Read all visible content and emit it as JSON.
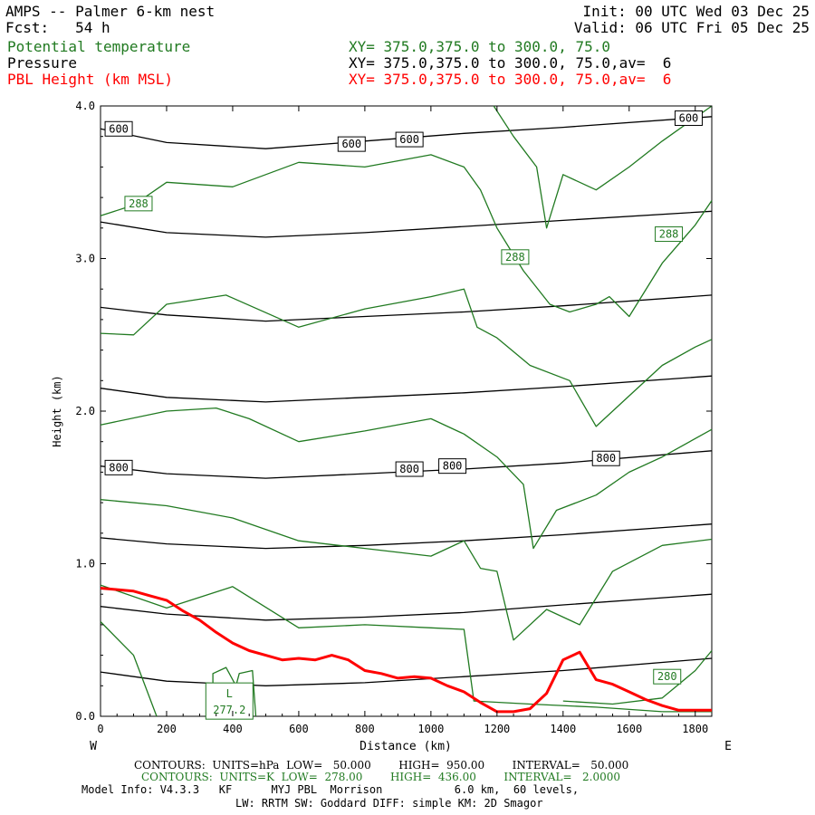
{
  "header": {
    "model_title": "AMPS -- Palmer 6-km nest",
    "forecast": "Fcst:   54 h",
    "init": "Init: 00 UTC Wed 03 Dec 25",
    "valid": "Valid: 06 UTC Fri 05 Dec 25",
    "legend": [
      {
        "name": "Potential temperature",
        "xy": "XY= 375.0,375.0 to 300.0, 75.0",
        "color": "#217a21"
      },
      {
        "name": "Pressure",
        "xy": "XY= 375.0,375.0 to 300.0, 75.0,av=  6",
        "color": "#000000"
      },
      {
        "name": "PBL Height (km MSL)",
        "xy": "XY= 375.0,375.0 to 300.0, 75.0,av=  6",
        "color": "#ff0000"
      }
    ]
  },
  "chart_data": {
    "type": "line",
    "title": "",
    "xlabel": "Distance (km)",
    "ylabel": "Height (km)",
    "xlim": [
      0,
      1850
    ],
    "ylim": [
      0.0,
      4.0
    ],
    "x_ticks": [
      0,
      200,
      400,
      600,
      800,
      1000,
      1200,
      1400,
      1600,
      1800
    ],
    "y_ticks": [
      0.0,
      1.0,
      2.0,
      3.0,
      4.0
    ],
    "y_tick_labels": [
      "0.0",
      "1.0",
      "2.0",
      "3.0",
      "4.0"
    ],
    "x_end_labels": {
      "left": "W",
      "right": "E"
    },
    "grid": false,
    "series": [
      {
        "name": "Pressure",
        "color": "#000000",
        "lines": [
          [
            [
              0,
              3.85
            ],
            [
              200,
              3.76
            ],
            [
              500,
              3.72
            ],
            [
              800,
              3.77
            ],
            [
              1100,
              3.82
            ],
            [
              1400,
              3.86
            ],
            [
              1850,
              3.93
            ]
          ],
          [
            [
              0,
              3.24
            ],
            [
              200,
              3.17
            ],
            [
              500,
              3.14
            ],
            [
              800,
              3.17
            ],
            [
              1100,
              3.21
            ],
            [
              1400,
              3.25
            ],
            [
              1850,
              3.31
            ]
          ],
          [
            [
              0,
              2.68
            ],
            [
              200,
              2.63
            ],
            [
              500,
              2.59
            ],
            [
              800,
              2.62
            ],
            [
              1100,
              2.65
            ],
            [
              1400,
              2.69
            ],
            [
              1850,
              2.76
            ]
          ],
          [
            [
              0,
              2.15
            ],
            [
              200,
              2.09
            ],
            [
              500,
              2.06
            ],
            [
              800,
              2.09
            ],
            [
              1100,
              2.12
            ],
            [
              1400,
              2.16
            ],
            [
              1850,
              2.23
            ]
          ],
          [
            [
              0,
              1.64
            ],
            [
              200,
              1.59
            ],
            [
              500,
              1.56
            ],
            [
              800,
              1.59
            ],
            [
              1100,
              1.62
            ],
            [
              1400,
              1.66
            ],
            [
              1850,
              1.74
            ]
          ],
          [
            [
              0,
              1.17
            ],
            [
              200,
              1.13
            ],
            [
              500,
              1.1
            ],
            [
              800,
              1.12
            ],
            [
              1100,
              1.15
            ],
            [
              1400,
              1.19
            ],
            [
              1850,
              1.26
            ]
          ],
          [
            [
              0,
              0.72
            ],
            [
              200,
              0.67
            ],
            [
              500,
              0.63
            ],
            [
              800,
              0.65
            ],
            [
              1100,
              0.68
            ],
            [
              1400,
              0.73
            ],
            [
              1850,
              0.8
            ]
          ],
          [
            [
              0,
              0.29
            ],
            [
              200,
              0.23
            ],
            [
              500,
              0.2
            ],
            [
              800,
              0.22
            ],
            [
              1100,
              0.26
            ],
            [
              1400,
              0.3
            ],
            [
              1850,
              0.38
            ]
          ]
        ],
        "labels": [
          {
            "text": "600",
            "x": 55,
            "y": 3.85
          },
          {
            "text": "600",
            "x": 760,
            "y": 3.75
          },
          {
            "text": "600",
            "x": 935,
            "y": 3.78
          },
          {
            "text": "600",
            "x": 1780,
            "y": 3.92
          },
          {
            "text": "800",
            "x": 55,
            "y": 1.63
          },
          {
            "text": "800",
            "x": 935,
            "y": 1.62
          },
          {
            "text": "800",
            "x": 1065,
            "y": 1.64
          },
          {
            "text": "800",
            "x": 1530,
            "y": 1.69
          }
        ]
      },
      {
        "name": "Potential temperature",
        "color": "#217a21",
        "lines": [
          [
            [
              0,
              3.28
            ],
            [
              100,
              3.35
            ],
            [
              200,
              3.5
            ],
            [
              400,
              3.47
            ],
            [
              600,
              3.63
            ],
            [
              800,
              3.6
            ],
            [
              1000,
              3.68
            ],
            [
              1100,
              3.6
            ],
            [
              1150,
              3.45
            ],
            [
              1200,
              3.2
            ],
            [
              1280,
              2.92
            ],
            [
              1360,
              2.7
            ],
            [
              1420,
              2.65
            ],
            [
              1500,
              2.7
            ],
            [
              1540,
              2.75
            ],
            [
              1600,
              2.62
            ],
            [
              1700,
              2.97
            ],
            [
              1800,
              3.22
            ],
            [
              1850,
              3.38
            ]
          ],
          [
            [
              0,
              2.51
            ],
            [
              100,
              2.5
            ],
            [
              200,
              2.7
            ],
            [
              380,
              2.76
            ],
            [
              600,
              2.55
            ],
            [
              800,
              2.67
            ],
            [
              1000,
              2.75
            ],
            [
              1100,
              2.8
            ],
            [
              1140,
              2.55
            ],
            [
              1200,
              2.48
            ],
            [
              1300,
              2.3
            ],
            [
              1420,
              2.2
            ],
            [
              1500,
              1.9
            ],
            [
              1600,
              2.1
            ],
            [
              1700,
              2.3
            ],
            [
              1800,
              2.42
            ],
            [
              1850,
              2.47
            ]
          ],
          [
            [
              0,
              1.91
            ],
            [
              200,
              2.0
            ],
            [
              350,
              2.02
            ],
            [
              450,
              1.95
            ],
            [
              600,
              1.8
            ],
            [
              800,
              1.87
            ],
            [
              1000,
              1.95
            ],
            [
              1100,
              1.85
            ],
            [
              1200,
              1.7
            ],
            [
              1280,
              1.52
            ],
            [
              1310,
              1.1
            ],
            [
              1380,
              1.35
            ],
            [
              1500,
              1.45
            ],
            [
              1600,
              1.6
            ],
            [
              1700,
              1.7
            ],
            [
              1850,
              1.88
            ]
          ],
          [
            [
              0,
              1.42
            ],
            [
              200,
              1.38
            ],
            [
              400,
              1.3
            ],
            [
              600,
              1.15
            ],
            [
              800,
              1.1
            ],
            [
              1000,
              1.05
            ],
            [
              1100,
              1.15
            ],
            [
              1150,
              0.97
            ],
            [
              1200,
              0.95
            ],
            [
              1250,
              0.5
            ],
            [
              1350,
              0.7
            ],
            [
              1450,
              0.6
            ],
            [
              1550,
              0.95
            ],
            [
              1700,
              1.12
            ],
            [
              1850,
              1.16
            ]
          ],
          [
            [
              0,
              0.86
            ],
            [
              200,
              0.71
            ],
            [
              400,
              0.85
            ],
            [
              600,
              0.58
            ],
            [
              800,
              0.6
            ],
            [
              1000,
              0.58
            ],
            [
              1100,
              0.57
            ],
            [
              1130,
              0.1
            ],
            [
              1300,
              0.08
            ],
            [
              1500,
              0.06
            ],
            [
              1700,
              0.03
            ],
            [
              1850,
              0.03
            ]
          ],
          [
            [
              0,
              0.62
            ],
            [
              100,
              0.4
            ],
            [
              170,
              0.0
            ]
          ],
          [
            [
              340,
              0.0
            ],
            [
              340,
              0.28
            ],
            [
              380,
              0.32
            ],
            [
              410,
              0.2
            ],
            [
              420,
              0.28
            ],
            [
              460,
              0.3
            ],
            [
              470,
              0.0
            ]
          ],
          [
            [
              1400,
              0.1
            ],
            [
              1550,
              0.08
            ],
            [
              1700,
              0.12
            ],
            [
              1800,
              0.3
            ],
            [
              1850,
              0.43
            ]
          ],
          [
            [
              1190,
              4.0
            ],
            [
              1250,
              3.8
            ],
            [
              1320,
              3.6
            ],
            [
              1350,
              3.2
            ],
            [
              1400,
              3.55
            ],
            [
              1500,
              3.45
            ],
            [
              1600,
              3.6
            ],
            [
              1700,
              3.77
            ],
            [
              1850,
              4.0
            ]
          ]
        ],
        "labels": [
          {
            "text": "288",
            "x": 115,
            "y": 3.36
          },
          {
            "text": "288",
            "x": 1255,
            "y": 3.01
          },
          {
            "text": "288",
            "x": 1720,
            "y": 3.16
          },
          {
            "text": "280",
            "x": 1715,
            "y": 0.26
          }
        ],
        "low_marker": {
          "symbol": "L",
          "value": "277.2",
          "x": 390,
          "y": 0.1
        }
      },
      {
        "name": "PBL Height",
        "color": "#ff0000",
        "points": [
          [
            0,
            0.84
          ],
          [
            50,
            0.83
          ],
          [
            100,
            0.82
          ],
          [
            150,
            0.79
          ],
          [
            200,
            0.76
          ],
          [
            250,
            0.69
          ],
          [
            300,
            0.63
          ],
          [
            350,
            0.55
          ],
          [
            400,
            0.48
          ],
          [
            450,
            0.43
          ],
          [
            500,
            0.4
          ],
          [
            550,
            0.37
          ],
          [
            600,
            0.38
          ],
          [
            650,
            0.37
          ],
          [
            700,
            0.4
          ],
          [
            750,
            0.37
          ],
          [
            800,
            0.3
          ],
          [
            850,
            0.28
          ],
          [
            900,
            0.25
          ],
          [
            950,
            0.26
          ],
          [
            1000,
            0.25
          ],
          [
            1050,
            0.2
          ],
          [
            1100,
            0.16
          ],
          [
            1150,
            0.09
          ],
          [
            1200,
            0.03
          ],
          [
            1250,
            0.03
          ],
          [
            1300,
            0.05
          ],
          [
            1350,
            0.15
          ],
          [
            1400,
            0.37
          ],
          [
            1450,
            0.42
          ],
          [
            1500,
            0.24
          ],
          [
            1550,
            0.21
          ],
          [
            1600,
            0.16
          ],
          [
            1650,
            0.11
          ],
          [
            1700,
            0.07
          ],
          [
            1750,
            0.04
          ],
          [
            1850,
            0.04
          ]
        ]
      }
    ]
  },
  "footer": {
    "line1": "CONTOURS:  UNITS=hPa  LOW=   50.000        HIGH=  950.00        INTERVAL=   50.000",
    "line2": "CONTOURS:  UNITS=K  LOW=  278.00        HIGH=  436.00        INTERVAL=   2.0000",
    "line3": "Model Info: V4.3.3   KF      MYJ PBL  Morrison           6.0 km,  60 levels,",
    "line4": "LW: RRTM SW: Goddard DIFF: simple KM: 2D Smagor"
  }
}
